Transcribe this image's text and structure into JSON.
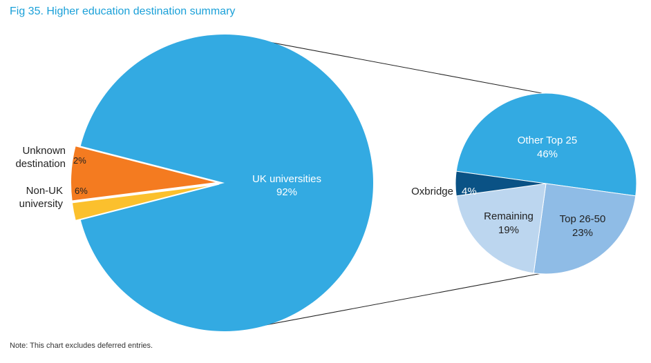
{
  "title": "Fig 35. Higher education destination summary",
  "note": "Note: This chart excludes deferred entries.",
  "chart_data": [
    {
      "type": "pie",
      "title": "Fig 35. Higher education destination summary",
      "slices": [
        {
          "name": "UK universities",
          "value": 92,
          "label": "92%",
          "color": "#33aae2"
        },
        {
          "name": "Unknown destination",
          "name_lines": [
            "Unknown",
            "destination"
          ],
          "value": 2,
          "label": "2%",
          "color": "#fbc02d"
        },
        {
          "name": "Non-UK university",
          "name_lines": [
            "Non-UK",
            "university"
          ],
          "value": 6,
          "label": "6%",
          "color": "#f47b20"
        }
      ]
    },
    {
      "type": "pie",
      "title": "",
      "breakdown_of": "UK universities",
      "slices": [
        {
          "name": "Other Top 25",
          "value": 46,
          "label": "46%",
          "color": "#33aae2"
        },
        {
          "name": "Top 26-50",
          "value": 23,
          "label": "23%",
          "color": "#8fbce6"
        },
        {
          "name": "Remaining",
          "value": 19,
          "label": "19%",
          "color": "#bcd6ef"
        },
        {
          "name": "Oxbridge",
          "value": 4,
          "label": "4%",
          "color": "#0a5285"
        }
      ]
    }
  ]
}
